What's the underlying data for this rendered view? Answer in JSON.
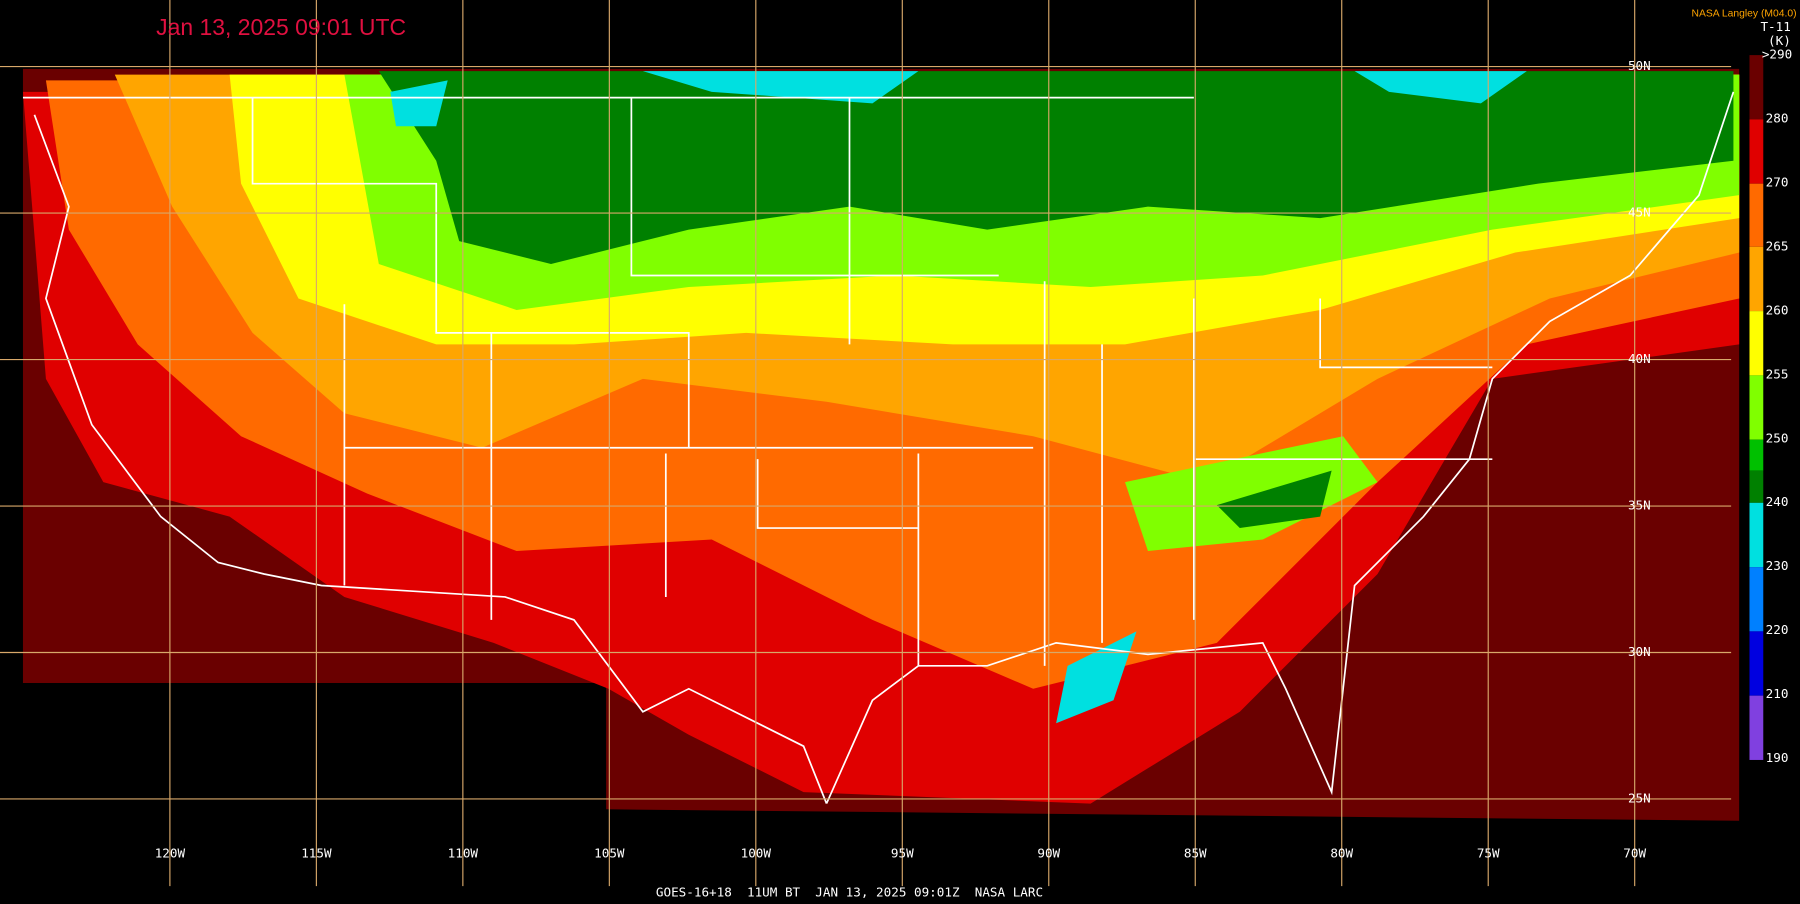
{
  "header": {
    "title": "Jan 13, 2025 09:01 UTC",
    "credit": "NASA Langley (M04.0)"
  },
  "colorbar": {
    "title": "T-11",
    "unit": "(K)",
    "labels": [
      ">290",
      "280",
      "270",
      "265",
      "260",
      "255",
      "250",
      "240",
      "230",
      "220",
      "210",
      "190"
    ]
  },
  "map": {
    "longitude_labels": [
      "120W",
      "115W",
      "110W",
      "105W",
      "100W",
      "95W",
      "90W",
      "85W",
      "80W",
      "75W",
      "70W"
    ],
    "latitude_labels": [
      "50N",
      "45N",
      "40N",
      "35N",
      "30N",
      "25N"
    ]
  },
  "footer": {
    "caption": "GOES-16+18  11UM BT  JAN 13, 2025 09:01Z  NASA LARC"
  }
}
